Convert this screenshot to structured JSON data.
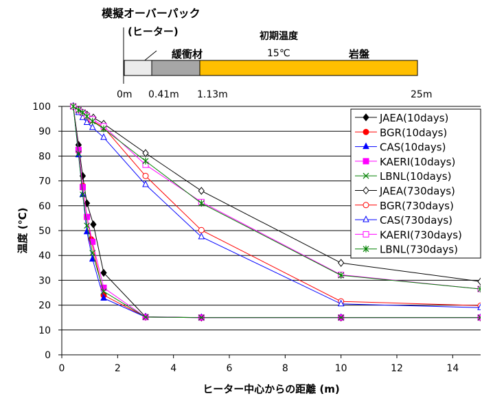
{
  "diagram": {
    "title_line1": "模擬オーバーパック",
    "title_line2": "(ヒーター)",
    "buffer_label": "緩衝材",
    "rock_label": "岩盤",
    "initial_temp_label": "初期温度",
    "initial_temp_value": "15℃",
    "positions": [
      "0m",
      "0.41m",
      "1.13m",
      "25m"
    ],
    "colors": {
      "heater": "#ececec",
      "buffer": "#a6a6a6",
      "rock": "#ffbf00"
    }
  },
  "chart_data": {
    "type": "line",
    "xlabel": "ヒーター中心からの距離 (m)",
    "ylabel": "温度 (℃)",
    "xlim": [
      0,
      15
    ],
    "ylim": [
      0,
      100
    ],
    "xticks": [
      0,
      2,
      4,
      6,
      8,
      10,
      12,
      14
    ],
    "yticks": [
      0,
      10,
      20,
      30,
      40,
      50,
      60,
      70,
      80,
      90,
      100
    ],
    "grid": "horizontal",
    "legend_position": "top-right",
    "series": [
      {
        "name": "JAEA(10days)",
        "color": "#000000",
        "marker": "diamond-filled",
        "x": [
          0.41,
          0.6,
          0.75,
          0.9,
          1.13,
          1.5,
          3,
          5,
          10,
          15
        ],
        "y": [
          100,
          84.5,
          72,
          61,
          52.5,
          33,
          15.3,
          15,
          15,
          15
        ]
      },
      {
        "name": "BGR(10days)",
        "color": "#ff0000",
        "marker": "circle-filled",
        "x": [
          0.41,
          0.6,
          0.75,
          0.9,
          1.05,
          1.5,
          3,
          5,
          10,
          15
        ],
        "y": [
          100,
          82,
          68,
          55.5,
          46.5,
          24,
          15.2,
          15,
          15,
          15
        ]
      },
      {
        "name": "CAS(10days)",
        "color": "#0000ff",
        "marker": "triangle-filled",
        "x": [
          0.41,
          0.6,
          0.75,
          0.9,
          1.1,
          1.5,
          3,
          5,
          10,
          15
        ],
        "y": [
          100,
          80.5,
          64.5,
          49.5,
          38.5,
          22.8,
          15.2,
          15,
          15,
          15
        ]
      },
      {
        "name": "KAERI(10days)",
        "color": "#ff00ff",
        "marker": "square-filled",
        "x": [
          0.41,
          0.6,
          0.75,
          0.9,
          1.1,
          1.5,
          3,
          5,
          10,
          15
        ],
        "y": [
          100,
          82.5,
          67.5,
          55.5,
          45.5,
          27,
          15.2,
          15,
          15,
          15
        ]
      },
      {
        "name": "LBNL(10days)",
        "color": "#008000",
        "marker": "x",
        "x": [
          0.41,
          0.6,
          0.75,
          0.9,
          1.1,
          1.5,
          3,
          5,
          10,
          15
        ],
        "y": [
          100,
          81,
          64.5,
          52,
          41,
          25.5,
          15.2,
          15,
          15,
          15
        ]
      },
      {
        "name": "JAEA(730days)",
        "color": "#000000",
        "marker": "diamond-open",
        "x": [
          0.41,
          0.6,
          0.75,
          0.9,
          1.13,
          1.5,
          3,
          5,
          10,
          15
        ],
        "y": [
          100,
          98.5,
          97.5,
          96.7,
          95.5,
          93,
          81.2,
          66,
          37,
          29.5
        ]
      },
      {
        "name": "BGR(730days)",
        "color": "#ff0000",
        "marker": "circle-open",
        "x": [
          0.41,
          0.6,
          0.75,
          0.9,
          1.05,
          1.5,
          3,
          5,
          10,
          15
        ],
        "y": [
          100,
          98.5,
          97.5,
          96.2,
          94.5,
          91.5,
          72,
          50.2,
          21.5,
          19.8
        ]
      },
      {
        "name": "CAS(730days)",
        "color": "#0000ff",
        "marker": "triangle-open",
        "x": [
          0.41,
          0.6,
          0.75,
          0.9,
          1.1,
          1.5,
          3,
          5,
          10,
          15
        ],
        "y": [
          100,
          97.5,
          95.5,
          93.5,
          91.5,
          87.5,
          68.5,
          47.5,
          20.5,
          19
        ]
      },
      {
        "name": "KAERI(730days)",
        "color": "#ff00ff",
        "marker": "square-open",
        "x": [
          0.41,
          0.6,
          0.75,
          0.9,
          1.1,
          1.5,
          3,
          5,
          10,
          15
        ],
        "y": [
          100,
          98.5,
          97.5,
          96.2,
          94.8,
          92,
          76.5,
          61.5,
          32.2,
          26.5
        ]
      },
      {
        "name": "LBNL(730days)",
        "color": "#008000",
        "marker": "star",
        "x": [
          0.41,
          0.6,
          0.75,
          0.9,
          1.1,
          1.5,
          3,
          5,
          10,
          15
        ],
        "y": [
          100,
          98.5,
          97.5,
          96,
          94,
          91,
          78,
          61,
          32,
          26.5
        ]
      }
    ]
  }
}
